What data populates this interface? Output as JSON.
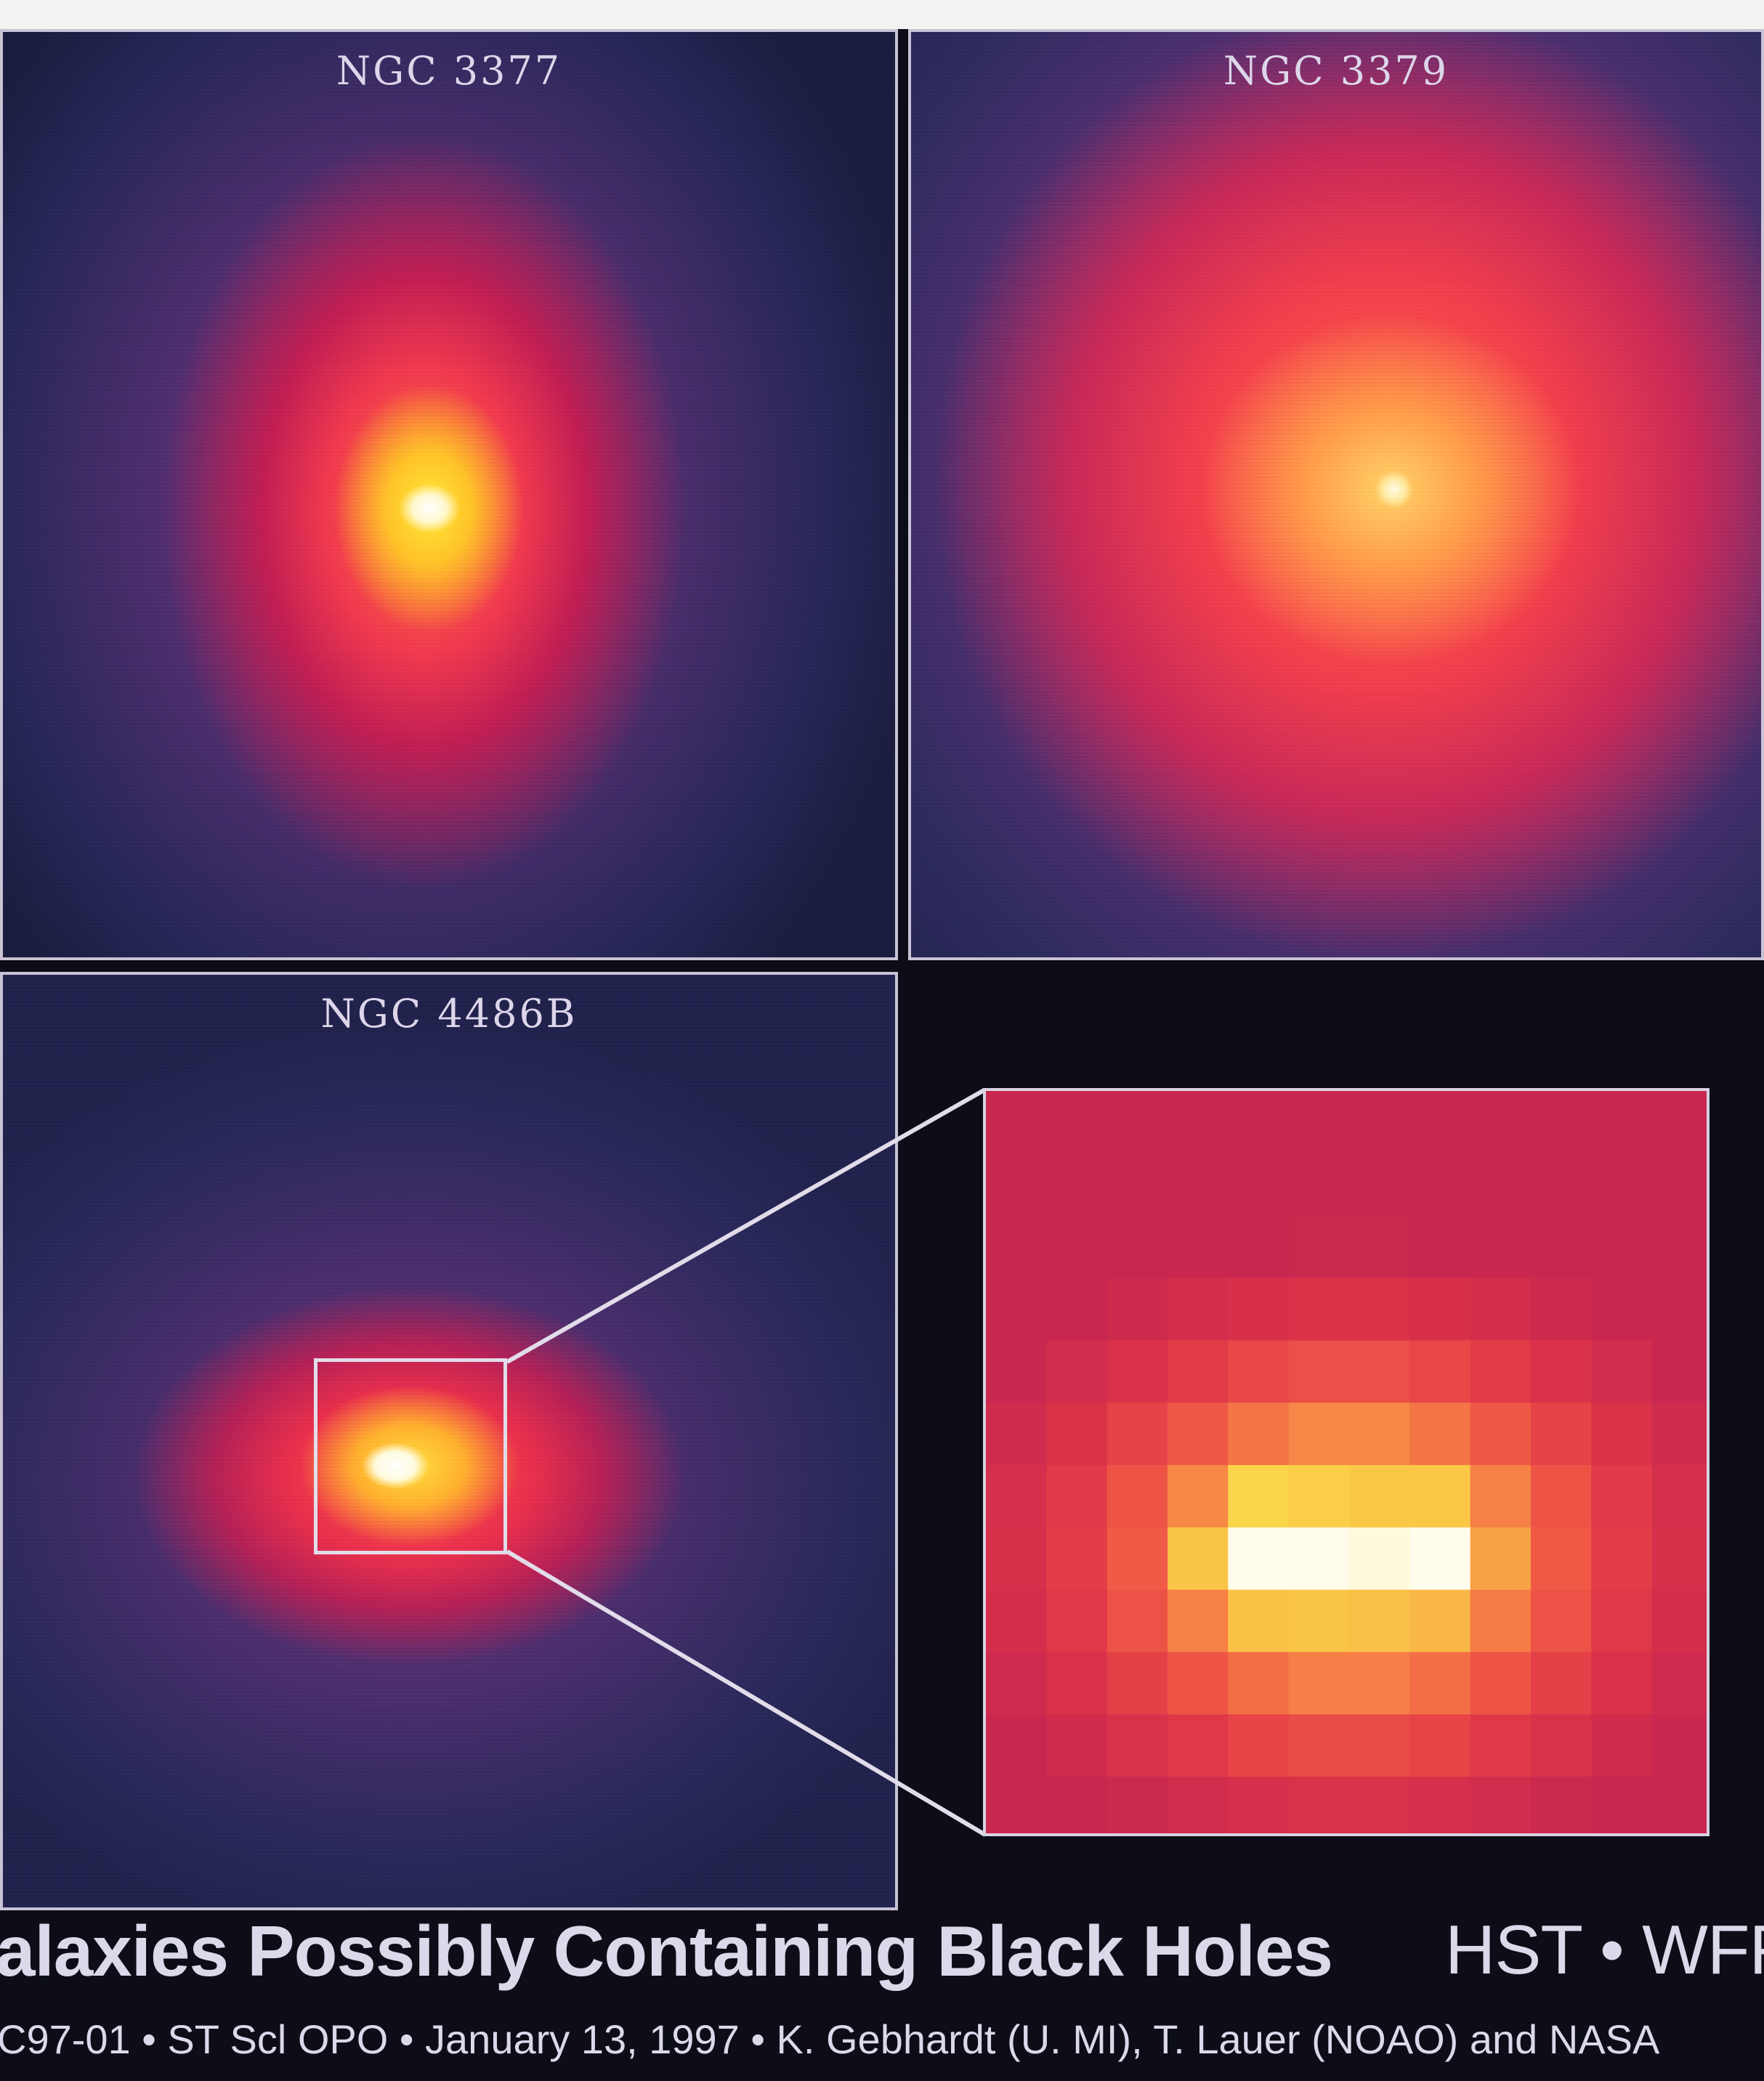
{
  "panels": {
    "top_left": {
      "label": "NGC 3377"
    },
    "top_right": {
      "label": "NGC 3379"
    },
    "bottom_left": {
      "label": "NGC 4486B"
    }
  },
  "caption": {
    "title": "alaxies Possibly Containing Black Holes",
    "instrument": "HST • WFF",
    "credit": "C97-01 • ST Scl OPO • January 13, 1997 • K. Gebhardt (U. MI), T. Lauer (NOAO) and NASA"
  },
  "colors": {
    "background": "#0c0d17",
    "frame": "#c9c3d6",
    "text": "#dcd8ea"
  }
}
